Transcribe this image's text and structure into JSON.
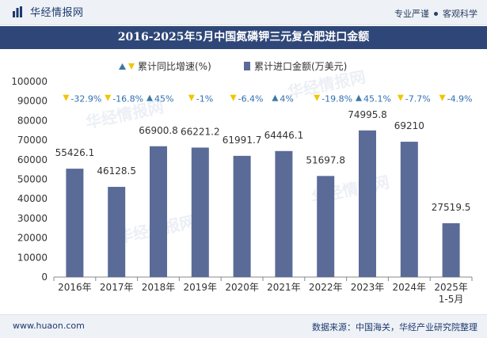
{
  "header": {
    "brand_name": "华经情报网",
    "tagline_left": "专业严谨",
    "tagline_right": "客观科学"
  },
  "footer": {
    "site": "www.huaon.com",
    "source": "数据来源：中国海关，华经产业研究院整理"
  },
  "colors": {
    "brand_dark": "#1d3a6e",
    "title_bar": "#2f4778",
    "bar": "#5b6b98",
    "growth_up": "#3a78a8",
    "growth_down": "#f2c500",
    "growth_text": "#2f6fb0"
  },
  "chart_data": {
    "type": "bar",
    "title": "2016-2025年5月中国氮磷钾三元复合肥进口金额",
    "categories": [
      "2016年",
      "2017年",
      "2018年",
      "2019年",
      "2020年",
      "2021年",
      "2022年",
      "2023年",
      "2024年",
      "2025年\n1-5月"
    ],
    "series": [
      {
        "name": "累计进口金额(万美元)",
        "values": [
          55426.1,
          46128.5,
          66900.8,
          66221.2,
          61991.7,
          64446.1,
          51697.8,
          74995.8,
          69210,
          27519.5
        ],
        "labels": [
          "55426.1",
          "46128.5",
          "66900.8",
          "66221.2",
          "61991.7",
          "64446.1",
          "51697.8",
          "74995.8",
          "69210",
          "27519.5"
        ]
      },
      {
        "name": "累计同比增速(%)",
        "values": [
          -32.9,
          -16.8,
          45,
          -1,
          -6.4,
          4,
          -19.8,
          45.1,
          -7.7,
          -4.9
        ],
        "labels": [
          "-32.9%",
          "-16.8%",
          "45%",
          "-1%",
          "-6.4%",
          "4%",
          "-19.8%",
          "45.1%",
          "-7.7%",
          "-4.9%"
        ]
      }
    ],
    "y_ticks": [
      "0",
      "10000",
      "20000",
      "30000",
      "40000",
      "50000",
      "60000",
      "70000",
      "80000",
      "90000",
      "100000"
    ],
    "ylim": [
      0,
      100000
    ],
    "legend_position": "top"
  }
}
